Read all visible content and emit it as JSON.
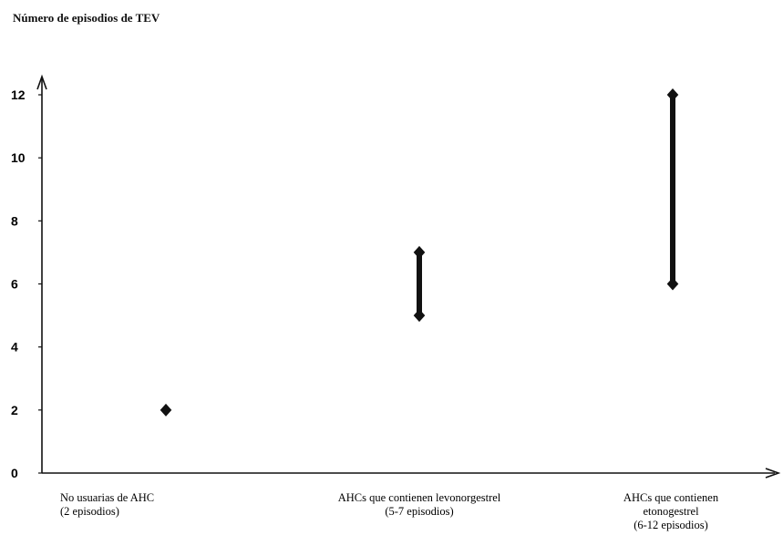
{
  "chart_data": {
    "type": "scatter",
    "title": "",
    "ylabel": "Número de episodios de TEV",
    "xlabel": "",
    "ylim": [
      0,
      12
    ],
    "yticks": [
      0,
      2,
      4,
      6,
      8,
      10,
      12
    ],
    "grid": false,
    "categories": [
      [
        "No usuarias de AHC",
        "(2 episodios)"
      ],
      [
        "AHCs que contienen levonorgestrel",
        "(5-7 episodios)"
      ],
      [
        "AHCs que contienen",
        "etonogestrel",
        "(6-12 episodios)"
      ]
    ],
    "ranges": [
      {
        "low": 2,
        "high": 2
      },
      {
        "low": 5,
        "high": 7
      },
      {
        "low": 6,
        "high": 12
      }
    ],
    "marker_color": "#111111"
  }
}
